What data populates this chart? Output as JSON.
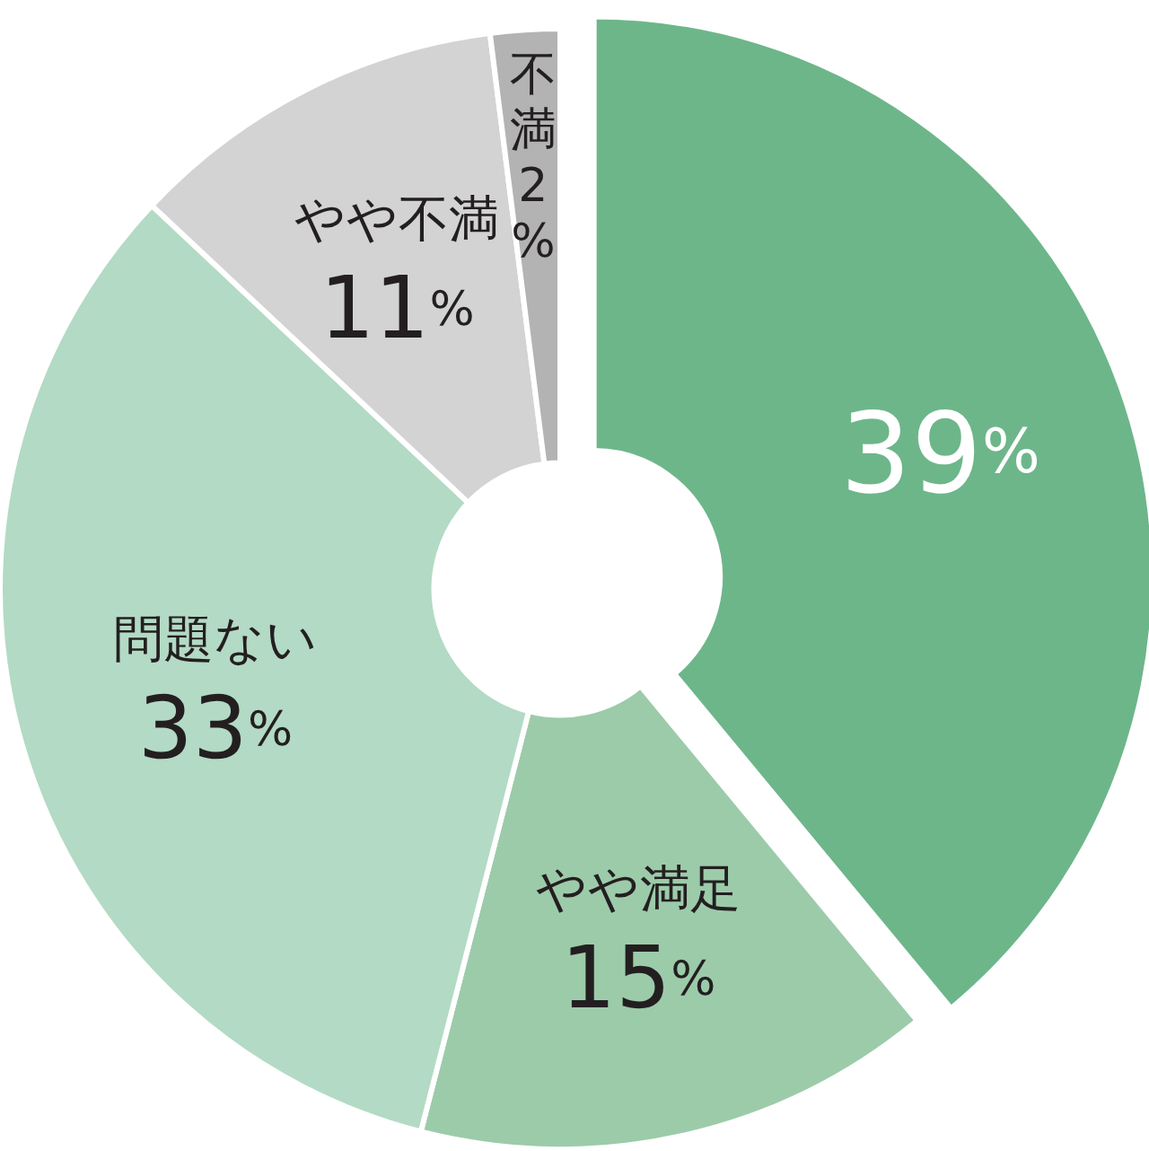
{
  "chart_data": {
    "type": "donut",
    "categories": [
      null,
      "やや満足",
      "問題ない",
      "やや不満",
      "不満"
    ],
    "values": [
      39,
      15,
      33,
      11,
      2
    ],
    "colors": [
      "#6db68a",
      "#9ccbaa",
      "#b3dac4",
      "#d3d3d3",
      "#b3b3b3"
    ],
    "value_labels": [
      "39%",
      "15%",
      "33%",
      "11%",
      "2%"
    ]
  }
}
